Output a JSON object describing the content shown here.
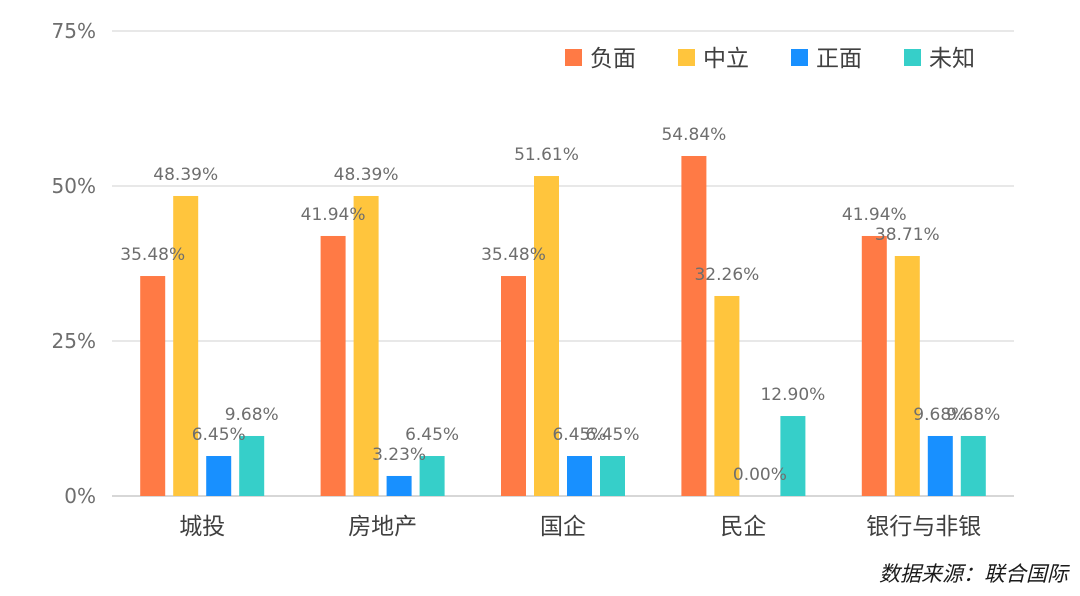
{
  "chart_data": {
    "type": "bar",
    "categories": [
      "城投",
      "房地产",
      "国企",
      "民企",
      "银行与非银"
    ],
    "series": [
      {
        "name": "负面",
        "color": "#ff7a45",
        "values": [
          35.48,
          41.94,
          35.48,
          54.84,
          41.94
        ],
        "labels": [
          "35.48%",
          "41.94%",
          "35.48%",
          "54.84%",
          "41.94%"
        ]
      },
      {
        "name": "中立",
        "color": "#ffc53d",
        "values": [
          48.39,
          48.39,
          51.61,
          32.26,
          38.71
        ],
        "labels": [
          "48.39%",
          "48.39%",
          "51.61%",
          "32.26%",
          "38.71%"
        ]
      },
      {
        "name": "正面",
        "color": "#1890ff",
        "values": [
          6.45,
          3.23,
          6.45,
          0.0,
          9.68
        ],
        "labels": [
          "6.45%",
          "3.23%",
          "6.45%",
          "0.00%",
          "9.68%"
        ]
      },
      {
        "name": "未知",
        "color": "#36cfc9",
        "values": [
          9.68,
          6.45,
          6.45,
          12.9,
          9.68
        ],
        "labels": [
          "9.68%",
          "6.45%",
          "6.45%",
          "12.90%",
          "9.68%"
        ]
      }
    ],
    "yticks": [
      0,
      25,
      50,
      75
    ],
    "ytick_labels": [
      "0%",
      "25%",
      "50%",
      "75%"
    ],
    "ylim": [
      0,
      75
    ],
    "grid": true,
    "legend": "top-right"
  },
  "source_note": "数据来源：联合国际"
}
